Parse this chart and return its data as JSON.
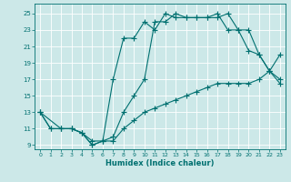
{
  "xlabel": "Humidex (Indice chaleur)",
  "bg_color": "#cce8e8",
  "line_color": "#007070",
  "grid_color": "#ffffff",
  "xlim": [
    -0.5,
    23.5
  ],
  "ylim": [
    8.5,
    26.2
  ],
  "xticks": [
    0,
    1,
    2,
    3,
    4,
    5,
    6,
    7,
    8,
    9,
    10,
    11,
    12,
    13,
    14,
    15,
    16,
    17,
    18,
    19,
    20,
    21,
    22,
    23
  ],
  "yticks": [
    9,
    11,
    13,
    15,
    17,
    19,
    21,
    23,
    25
  ],
  "line1_x": [
    0,
    1,
    2,
    3,
    4,
    5,
    6,
    7,
    8,
    9,
    10,
    11,
    12,
    13,
    14,
    15,
    16,
    17,
    18,
    19,
    20,
    21,
    22,
    23
  ],
  "line1_y": [
    13,
    11,
    11,
    11,
    10.5,
    9,
    9.5,
    17,
    22,
    22,
    24,
    23,
    25,
    24.5,
    24.5,
    24.5,
    24.5,
    25,
    23,
    23,
    20.5,
    20,
    18,
    17
  ],
  "line2_x": [
    0,
    1,
    2,
    3,
    4,
    5,
    6,
    7,
    8,
    9,
    10,
    11,
    12,
    13,
    14,
    15,
    16,
    17,
    18,
    19,
    20,
    21,
    22,
    23
  ],
  "line2_y": [
    13,
    11,
    11,
    11,
    10.5,
    9,
    9.5,
    10,
    13,
    15,
    17,
    24,
    24,
    25,
    24.5,
    24.5,
    24.5,
    24.5,
    25,
    23,
    23,
    20,
    18,
    16.5
  ],
  "line3_x": [
    0,
    2,
    3,
    4,
    5,
    6,
    7,
    8,
    9,
    10,
    11,
    12,
    13,
    14,
    15,
    16,
    17,
    18,
    19,
    20,
    21,
    22,
    23
  ],
  "line3_y": [
    13,
    11,
    11,
    10.5,
    9.5,
    9.5,
    9.5,
    11,
    12,
    13,
    13.5,
    14,
    14.5,
    15,
    15.5,
    16,
    16.5,
    16.5,
    16.5,
    16.5,
    17,
    18,
    20
  ]
}
